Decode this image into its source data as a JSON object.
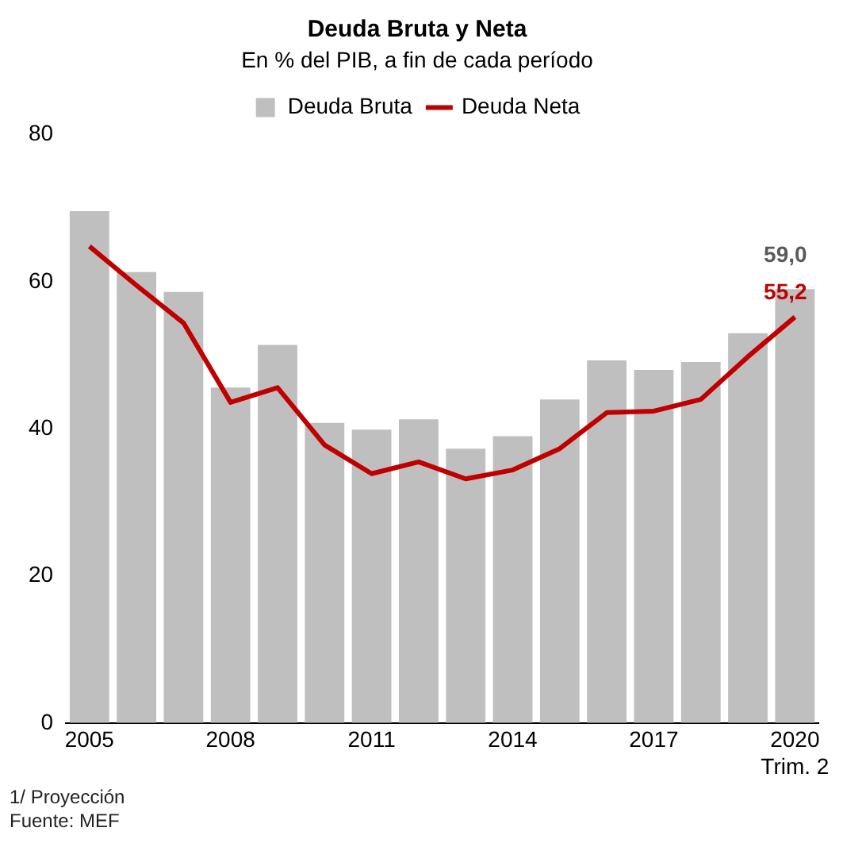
{
  "chart_data": {
    "type": "bar",
    "title": "Deuda Bruta y Neta",
    "subtitle": "En % del PIB, a fin de cada período",
    "categories": [
      "2005",
      null,
      null,
      "2008",
      null,
      null,
      "2011",
      null,
      null,
      "2014",
      null,
      null,
      "2017",
      null,
      null,
      "2020\nTrim. 2"
    ],
    "series": [
      {
        "name": "Deuda Bruta",
        "color": "#bfbfbf",
        "values": [
          69.6,
          61.3,
          58.6,
          45.6,
          51.4,
          40.8,
          39.9,
          41.3,
          37.3,
          39.0,
          44.0,
          49.3,
          48.0,
          49.1,
          53.0,
          59.0
        ],
        "value_labels": [
          null,
          null,
          null,
          null,
          null,
          null,
          null,
          null,
          null,
          null,
          null,
          null,
          null,
          null,
          null,
          "59,0"
        ]
      },
      {
        "name": "Deuda Neta",
        "type": "line",
        "color": "#c00000",
        "marker": "none",
        "values": [
          64.8,
          59.5,
          54.4,
          43.6,
          45.6,
          37.8,
          33.9,
          35.5,
          33.2,
          34.4,
          37.3,
          42.2,
          42.4,
          44.0,
          49.8,
          55.2
        ],
        "value_labels": [
          null,
          null,
          null,
          null,
          null,
          null,
          null,
          null,
          null,
          null,
          null,
          null,
          null,
          null,
          null,
          "55,2"
        ]
      }
    ],
    "ylim": [
      0,
      80
    ],
    "yticks": [
      0,
      20,
      40,
      60,
      80
    ],
    "grid": false,
    "legend": "top",
    "annotations": [
      "1/ Proyección",
      "Fuente: MEF"
    ]
  }
}
